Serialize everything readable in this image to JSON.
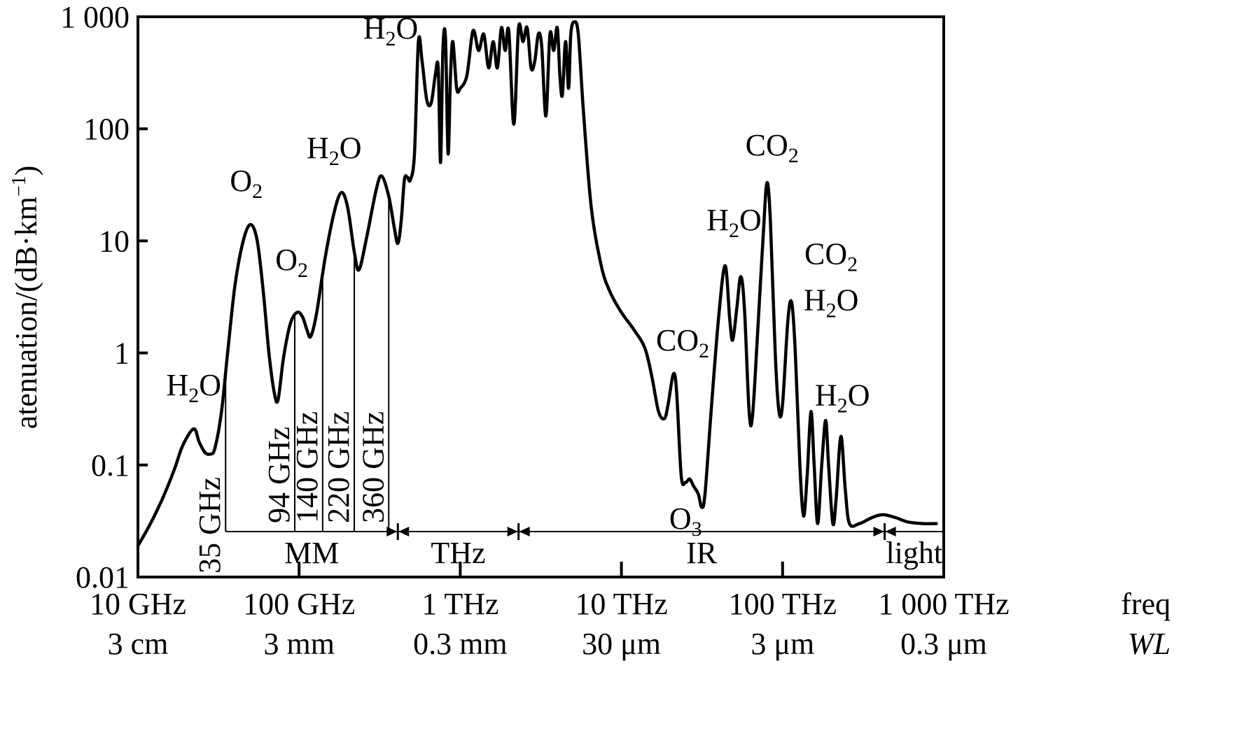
{
  "chart_data": {
    "type": "line",
    "ylabel": "atenuation/(dB·km",
    "ylabel_sup": "−1",
    "ylabel_end": ")",
    "y_scale": "log",
    "ylim": [
      0.01,
      1000
    ],
    "y_ticks": [
      {
        "value": 0.01,
        "label": "0.01"
      },
      {
        "value": 0.1,
        "label": "0.1"
      },
      {
        "value": 1,
        "label": "1"
      },
      {
        "value": 10,
        "label": "10"
      },
      {
        "value": 100,
        "label": "100"
      },
      {
        "value": 1000,
        "label": "1 000"
      }
    ],
    "x_scale": "log",
    "x_unit": "GHz",
    "xlim": [
      10,
      1000000
    ],
    "x_ticks": [
      {
        "value": 10,
        "freq": "10 GHz",
        "wl": "3 cm"
      },
      {
        "value": 100,
        "freq": "100 GHz",
        "wl": "3 mm"
      },
      {
        "value": 1000,
        "freq": "1 THz",
        "wl": "0.3 mm"
      },
      {
        "value": 10000,
        "freq": "10 THz",
        "wl": "30 μm"
      },
      {
        "value": 100000,
        "freq": "100 THz",
        "wl": "3 μm"
      },
      {
        "value": 1000000,
        "freq": "1 000 THz",
        "wl": "0.3 μm"
      }
    ],
    "x_axis_names": {
      "freq": "freq",
      "wl": "WL"
    },
    "series": [
      {
        "color": "#000000",
        "points": [
          [
            10,
            0.019
          ],
          [
            11.5,
            0.027
          ],
          [
            13,
            0.038
          ],
          [
            15,
            0.06
          ],
          [
            17,
            0.095
          ],
          [
            19,
            0.15
          ],
          [
            22.2,
            0.21
          ],
          [
            24,
            0.16
          ],
          [
            26,
            0.13
          ],
          [
            28,
            0.125
          ],
          [
            30,
            0.14
          ],
          [
            33,
            0.3
          ],
          [
            36,
            1.0
          ],
          [
            40,
            4.0
          ],
          [
            45,
            10.0
          ],
          [
            50,
            14.0
          ],
          [
            55,
            10.0
          ],
          [
            60,
            3.5
          ],
          [
            65,
            1.0
          ],
          [
            70,
            0.45
          ],
          [
            74,
            0.38
          ],
          [
            80,
            0.9
          ],
          [
            88,
            1.8
          ],
          [
            97,
            2.3
          ],
          [
            105,
            2.1
          ],
          [
            112,
            1.6
          ],
          [
            118,
            1.4
          ],
          [
            128,
            2.2
          ],
          [
            145,
            7.0
          ],
          [
            165,
            18.0
          ],
          [
            183,
            27.0
          ],
          [
            200,
            20.0
          ],
          [
            220,
            8.0
          ],
          [
            235,
            5.5
          ],
          [
            260,
            10.0
          ],
          [
            300,
            28.0
          ],
          [
            325,
            38.0
          ],
          [
            360,
            25.0
          ],
          [
            390,
            13.0
          ],
          [
            410,
            9.5
          ],
          [
            430,
            15.0
          ],
          [
            450,
            35.0
          ],
          [
            470,
            37.0
          ],
          [
            490,
            35.0
          ],
          [
            520,
            60.0
          ],
          [
            550,
            600.0
          ],
          [
            580,
            400.0
          ],
          [
            620,
            180.0
          ],
          [
            660,
            170.0
          ],
          [
            700,
            300.0
          ],
          [
            730,
            350.0
          ],
          [
            755,
            50.0
          ],
          [
            780,
            500.0
          ],
          [
            810,
            650.0
          ],
          [
            840,
            60.0
          ],
          [
            870,
            300.0
          ],
          [
            900,
            600.0
          ],
          [
            950,
            230.0
          ],
          [
            1000,
            230.0
          ],
          [
            1100,
            300.0
          ],
          [
            1200,
            750.0
          ],
          [
            1300,
            500.0
          ],
          [
            1400,
            700.0
          ],
          [
            1500,
            350.0
          ],
          [
            1600,
            600.0
          ],
          [
            1700,
            350.0
          ],
          [
            1800,
            800.0
          ],
          [
            1900,
            500.0
          ],
          [
            2000,
            750.0
          ],
          [
            2150,
            110.0
          ],
          [
            2300,
            800.0
          ],
          [
            2450,
            600.0
          ],
          [
            2600,
            800.0
          ],
          [
            2750,
            350.0
          ],
          [
            2900,
            400.0
          ],
          [
            3050,
            700.0
          ],
          [
            3200,
            550.0
          ],
          [
            3400,
            130.0
          ],
          [
            3600,
            700.0
          ],
          [
            3800,
            500.0
          ],
          [
            4000,
            800.0
          ],
          [
            4150,
            300.0
          ],
          [
            4300,
            200.0
          ],
          [
            4500,
            600.0
          ],
          [
            4700,
            230.0
          ],
          [
            4850,
            700.0
          ],
          [
            5100,
            900.0
          ],
          [
            5400,
            700.0
          ],
          [
            5800,
            150.0
          ],
          [
            6500,
            20.0
          ],
          [
            7500,
            6.0
          ],
          [
            8500,
            3.5
          ],
          [
            10000,
            2.3
          ],
          [
            12000,
            1.6
          ],
          [
            14000,
            1.1
          ],
          [
            15500,
            0.6
          ],
          [
            17000,
            0.3
          ],
          [
            18500,
            0.26
          ],
          [
            19500,
            0.35
          ],
          [
            21000,
            0.65
          ],
          [
            22000,
            0.45
          ],
          [
            23500,
            0.08
          ],
          [
            25000,
            0.07
          ],
          [
            26500,
            0.075
          ],
          [
            28000,
            0.065
          ],
          [
            30000,
            0.055
          ],
          [
            31500,
            0.042
          ],
          [
            33000,
            0.055
          ],
          [
            36000,
            0.3
          ],
          [
            40000,
            2.0
          ],
          [
            44000,
            6.0
          ],
          [
            47000,
            2.0
          ],
          [
            49000,
            1.3
          ],
          [
            52000,
            2.5
          ],
          [
            55000,
            4.8
          ],
          [
            58000,
            2.5
          ],
          [
            62000,
            0.3
          ],
          [
            65000,
            0.27
          ],
          [
            70000,
            1.5
          ],
          [
            76000,
            12.0
          ],
          [
            80000,
            33.0
          ],
          [
            84000,
            15.0
          ],
          [
            90000,
            1.0
          ],
          [
            95000,
            0.3
          ],
          [
            100000,
            0.35
          ],
          [
            108000,
            2.0
          ],
          [
            114000,
            2.8
          ],
          [
            120000,
            1.0
          ],
          [
            128000,
            0.1
          ],
          [
            135000,
            0.035
          ],
          [
            142000,
            0.08
          ],
          [
            150000,
            0.3
          ],
          [
            157000,
            0.1
          ],
          [
            165000,
            0.03
          ],
          [
            175000,
            0.1
          ],
          [
            185000,
            0.25
          ],
          [
            193000,
            0.1
          ],
          [
            205000,
            0.03
          ],
          [
            215000,
            0.05
          ],
          [
            230000,
            0.18
          ],
          [
            245000,
            0.06
          ],
          [
            260000,
            0.03
          ],
          [
            300000,
            0.03
          ],
          [
            360000,
            0.034
          ],
          [
            420000,
            0.036
          ],
          [
            500000,
            0.034
          ],
          [
            600000,
            0.031
          ],
          [
            750000,
            0.03
          ],
          [
            900000,
            0.03
          ]
        ]
      }
    ],
    "annotations": [
      {
        "base": "H",
        "sub": "2",
        "rest": "O",
        "x": 22.2,
        "y": 0.42
      },
      {
        "base": "O",
        "sub": "2",
        "rest": "",
        "x": 47,
        "y": 28
      },
      {
        "base": "O",
        "sub": "2",
        "rest": "",
        "x": 90,
        "y": 5.5
      },
      {
        "base": "H",
        "sub": "2",
        "rest": "O",
        "x": 165,
        "y": 55
      },
      {
        "base": "H",
        "sub": "2",
        "rest": "O",
        "x": 370,
        "y": 640
      },
      {
        "base": "CO",
        "sub": "2",
        "rest": "",
        "x": 24000,
        "y": 1.05
      },
      {
        "base": "O",
        "sub": "3",
        "rest": "",
        "x": 25000,
        "y": 0.027
      },
      {
        "base": "H",
        "sub": "2",
        "rest": "O",
        "x": 50000,
        "y": 12.5
      },
      {
        "base": "CO",
        "sub": "2",
        "rest": "",
        "x": 86000,
        "y": 58
      },
      {
        "base": "CO",
        "sub": "2",
        "rest": "",
        "x": 200000,
        "y": 6.2
      },
      {
        "base": "H",
        "sub": "2",
        "rest": "O",
        "x": 200000,
        "y": 2.4
      },
      {
        "base": "H",
        "sub": "2",
        "rest": "O",
        "x": 235000,
        "y": 0.34
      }
    ],
    "window_markers": [
      {
        "label": "35 GHz",
        "x": 35
      },
      {
        "label": "94 GHz",
        "x": 94
      },
      {
        "label": "140 GHz",
        "x": 140
      },
      {
        "label": "220 GHz",
        "x": 220
      },
      {
        "label": "360 GHz",
        "x": 360
      }
    ],
    "bands": [
      {
        "label": "MM",
        "from": 35,
        "to": 410
      },
      {
        "label": "THz",
        "from": 410,
        "to": 2300
      },
      {
        "label": "IR",
        "from": 2300,
        "to": 430000
      },
      {
        "label": "light",
        "from": 430000,
        "to": 1000000
      }
    ]
  }
}
